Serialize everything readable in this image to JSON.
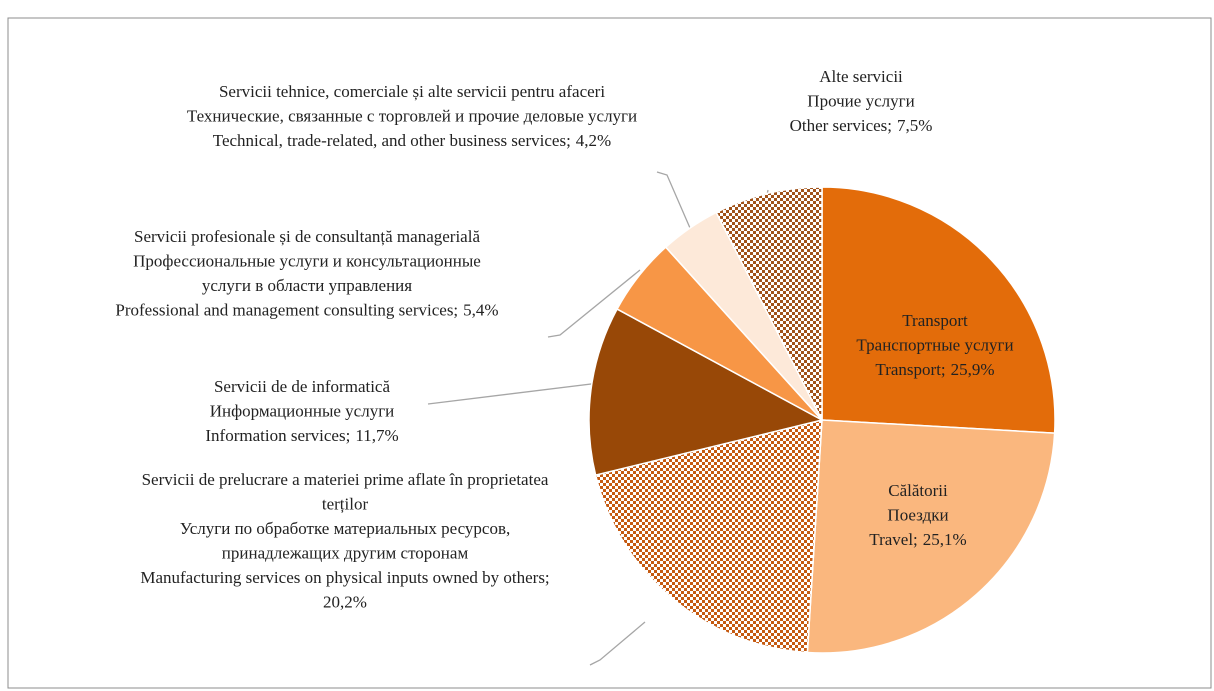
{
  "chart_data": {
    "type": "pie",
    "categories": [
      [
        "Transport",
        "Транспортные услуги",
        "Transport;"
      ],
      [
        "Călătorii",
        "Поездки",
        "Travel;"
      ],
      [
        "Servicii de prelucrare a materiei prime aflate în proprietatea",
        "terților",
        "Услуги по обработке материальных ресурсов,",
        "принадлежащих другим сторонам",
        "Manufacturing services on physical inputs owned by others;"
      ],
      [
        "Servicii de  de informatică",
        "Информационные услуги",
        "Information services;"
      ],
      [
        "Servicii profesionale și de consultanță managerială",
        "Профессиональные услуги и консультационные",
        "услуги в области управления",
        "Professional and management consulting services;"
      ],
      [
        "Servicii tehnice, comerciale și alte servicii pentru afaceri",
        "Технические, связанные с торговлей и прочие деловые услуги",
        "Technical, trade-related, and other business services;"
      ],
      [
        "Alte servicii",
        "Прочие услуги",
        "Other services;"
      ]
    ],
    "values": [
      25.9,
      25.1,
      20.2,
      11.7,
      5.4,
      4.2,
      7.5
    ],
    "value_labels": [
      "25,9%",
      "25,1%",
      "20,2%",
      "11,7%",
      "5,4%",
      "4,2%",
      "7,5%"
    ],
    "colors": [
      "#e36c0a",
      "#fab77e",
      "#c55a11",
      "#984807",
      "#f79646",
      "#fde9d9",
      "#a0521a"
    ],
    "patterned": [
      false,
      false,
      true,
      false,
      false,
      false,
      true
    ]
  }
}
